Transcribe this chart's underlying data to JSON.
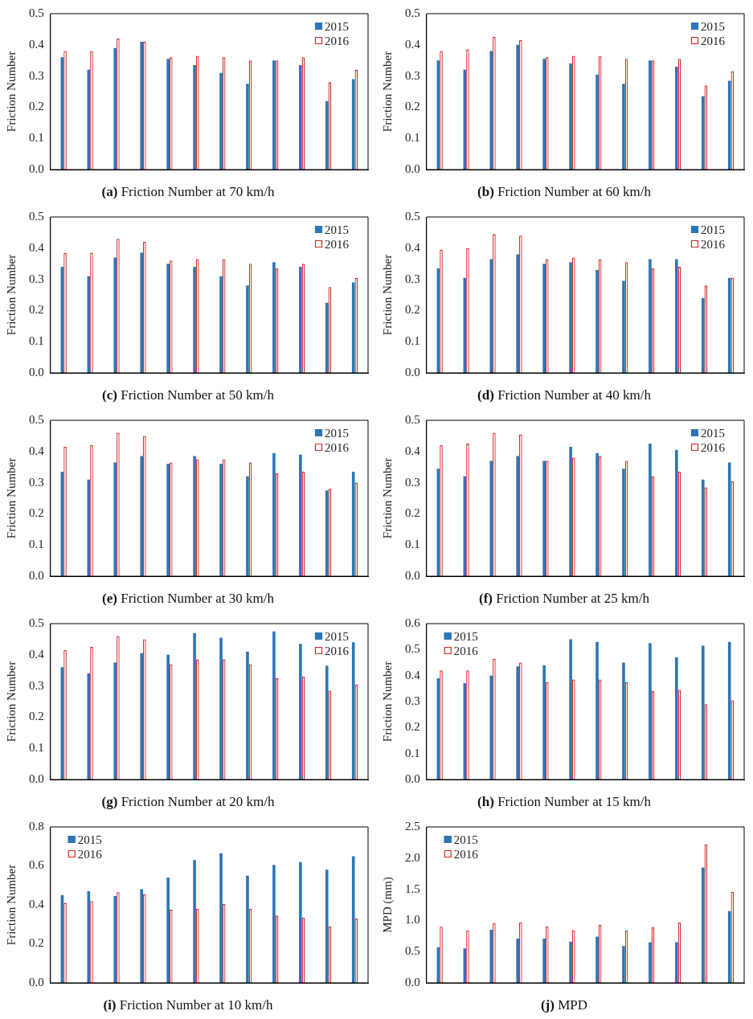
{
  "chart_data": [
    {
      "type": "bar",
      "title": "(a) Friction Number at 70 km/h",
      "ylabel": "Friction Number",
      "categories": [
        null,
        null,
        null,
        null,
        null,
        null,
        null,
        null,
        null,
        null,
        null,
        null
      ],
      "ylim": [
        0,
        0.5
      ],
      "yticks": [
        {
          "value": 0,
          "label": "0.0"
        },
        0.1,
        0.2,
        0.3,
        0.4,
        0.5
      ],
      "tick_labels": "y",
      "grid": false,
      "legend": "top right",
      "series": [
        {
          "name": "2015",
          "color": "#2e75b6",
          "values": [
            0.36,
            0.32,
            0.39,
            0.41,
            0.355,
            0.335,
            0.31,
            0.275,
            0.35,
            0.335,
            0.22,
            0.29
          ]
        },
        {
          "name": "2016",
          "color": "#d62828",
          "values": [
            0.38,
            0.38,
            0.42,
            0.41,
            0.36,
            0.365,
            0.36,
            0.35,
            0.35,
            0.36,
            0.28,
            0.32
          ]
        }
      ]
    },
    {
      "type": "bar",
      "title": "(b) Friction Number at 60 km/h",
      "ylabel": "Friction Number",
      "categories": [
        null,
        null,
        null,
        null,
        null,
        null,
        null,
        null,
        null,
        null,
        null,
        null
      ],
      "ylim": [
        0,
        0.5
      ],
      "yticks": [
        {
          "value": 0,
          "label": "0.0"
        },
        0.1,
        0.2,
        0.3,
        0.4,
        0.5
      ],
      "tick_labels": "y",
      "grid": false,
      "legend": "top right",
      "series": [
        {
          "name": "2015",
          "color": "#2e75b6",
          "values": [
            0.35,
            0.32,
            0.38,
            0.4,
            0.355,
            0.34,
            0.305,
            0.275,
            0.35,
            0.33,
            0.235,
            0.285
          ]
        },
        {
          "name": "2016",
          "color": "#d62828",
          "values": [
            0.38,
            0.385,
            0.425,
            0.415,
            0.36,
            0.365,
            0.365,
            0.355,
            0.35,
            0.355,
            0.27,
            0.315
          ]
        }
      ]
    },
    {
      "type": "bar",
      "title": "(c) Friction Number at 50 km/h",
      "ylabel": "Friction Number",
      "categories": [
        null,
        null,
        null,
        null,
        null,
        null,
        null,
        null,
        null,
        null,
        null,
        null
      ],
      "ylim": [
        0,
        0.5
      ],
      "yticks": [
        {
          "value": 0,
          "label": "0.0"
        },
        0.1,
        0.2,
        0.3,
        0.4,
        0.5
      ],
      "tick_labels": "y",
      "grid": false,
      "legend": "top right",
      "series": [
        {
          "name": "2015",
          "color": "#2e75b6",
          "values": [
            0.34,
            0.31,
            0.37,
            0.385,
            0.35,
            0.34,
            0.31,
            0.28,
            0.355,
            0.34,
            0.225,
            0.29
          ]
        },
        {
          "name": "2016",
          "color": "#d62828",
          "values": [
            0.385,
            0.385,
            0.43,
            0.42,
            0.36,
            0.365,
            0.365,
            0.35,
            0.335,
            0.35,
            0.275,
            0.305
          ]
        }
      ]
    },
    {
      "type": "bar",
      "title": "(d) Friction Number at 40 km/h",
      "ylabel": "Friction Number",
      "categories": [
        null,
        null,
        null,
        null,
        null,
        null,
        null,
        null,
        null,
        null,
        null,
        null
      ],
      "ylim": [
        0,
        0.5
      ],
      "yticks": [
        {
          "value": 0,
          "label": "0.0"
        },
        0.1,
        0.2,
        0.3,
        0.4,
        0.5
      ],
      "tick_labels": "y",
      "grid": false,
      "legend": "top right",
      "series": [
        {
          "name": "2015",
          "color": "#2e75b6",
          "values": [
            0.335,
            0.305,
            0.365,
            0.38,
            0.35,
            0.355,
            0.33,
            0.295,
            0.365,
            0.365,
            0.24,
            0.305
          ]
        },
        {
          "name": "2016",
          "color": "#d62828",
          "values": [
            0.395,
            0.4,
            0.445,
            0.44,
            0.365,
            0.37,
            0.365,
            0.355,
            0.335,
            0.34,
            0.28,
            0.305
          ]
        }
      ]
    },
    {
      "type": "bar",
      "title": "(e) Friction Number at 30 km/h",
      "ylabel": "Friction Number",
      "categories": [
        null,
        null,
        null,
        null,
        null,
        null,
        null,
        null,
        null,
        null,
        null,
        null
      ],
      "ylim": [
        0,
        0.5
      ],
      "yticks": [
        {
          "value": 0,
          "label": "0.0"
        },
        0.1,
        0.2,
        0.3,
        0.4,
        0.5
      ],
      "tick_labels": "y",
      "grid": false,
      "legend": "top right",
      "series": [
        {
          "name": "2015",
          "color": "#2e75b6",
          "values": [
            0.335,
            0.31,
            0.365,
            0.385,
            0.36,
            0.385,
            0.36,
            0.32,
            0.395,
            0.39,
            0.275,
            0.335
          ]
        },
        {
          "name": "2016",
          "color": "#d62828",
          "values": [
            0.415,
            0.42,
            0.46,
            0.45,
            0.365,
            0.375,
            0.375,
            0.365,
            0.33,
            0.335,
            0.28,
            0.3
          ]
        }
      ]
    },
    {
      "type": "bar",
      "title": "(f) Friction Number at 25 km/h",
      "ylabel": "Friction Number",
      "categories": [
        null,
        null,
        null,
        null,
        null,
        null,
        null,
        null,
        null,
        null,
        null,
        null
      ],
      "ylim": [
        0,
        0.5
      ],
      "yticks": [
        {
          "value": 0,
          "label": "0.0"
        },
        0.1,
        0.2,
        0.3,
        0.4,
        0.5
      ],
      "tick_labels": "y",
      "grid": false,
      "legend": "top right",
      "series": [
        {
          "name": "2015",
          "color": "#2e75b6",
          "values": [
            0.345,
            0.32,
            0.37,
            0.385,
            0.37,
            0.415,
            0.395,
            0.345,
            0.425,
            0.405,
            0.31,
            0.365
          ]
        },
        {
          "name": "2016",
          "color": "#d62828",
          "values": [
            0.42,
            0.425,
            0.46,
            0.455,
            0.37,
            0.38,
            0.385,
            0.37,
            0.32,
            0.335,
            0.285,
            0.305
          ]
        }
      ]
    },
    {
      "type": "bar",
      "title": "(g) Friction Number at 20 km/h",
      "ylabel": "Friction Number",
      "categories": [
        null,
        null,
        null,
        null,
        null,
        null,
        null,
        null,
        null,
        null,
        null,
        null
      ],
      "ylim": [
        0,
        0.5
      ],
      "yticks": [
        {
          "value": 0,
          "label": "0.0"
        },
        0.1,
        0.2,
        0.3,
        0.4,
        0.5
      ],
      "tick_labels": "y",
      "grid": false,
      "legend": "top right",
      "series": [
        {
          "name": "2015",
          "color": "#2e75b6",
          "values": [
            0.36,
            0.34,
            0.375,
            0.405,
            0.4,
            0.47,
            0.455,
            0.41,
            0.475,
            0.435,
            0.365,
            0.44
          ]
        },
        {
          "name": "2016",
          "color": "#d62828",
          "values": [
            0.415,
            0.425,
            0.46,
            0.45,
            0.37,
            0.385,
            0.385,
            0.37,
            0.325,
            0.33,
            0.285,
            0.305
          ]
        }
      ]
    },
    {
      "type": "bar",
      "title": "(h) Friction Number at 15 km/h",
      "ylabel": "Friction Number",
      "categories": [
        null,
        null,
        null,
        null,
        null,
        null,
        null,
        null,
        null,
        null,
        null,
        null
      ],
      "ylim": [
        0,
        0.6
      ],
      "yticks": [
        {
          "value": 0,
          "label": "0.0"
        },
        0.1,
        0.2,
        0.3,
        0.4,
        0.5,
        0.6
      ],
      "tick_labels": "y",
      "grid": false,
      "legend": "top left",
      "series": [
        {
          "name": "2015",
          "color": "#2e75b6",
          "values": [
            0.39,
            0.37,
            0.4,
            0.435,
            0.44,
            0.54,
            0.53,
            0.45,
            0.525,
            0.47,
            0.515,
            0.53
          ]
        },
        {
          "name": "2016",
          "color": "#d62828",
          "values": [
            0.42,
            0.42,
            0.465,
            0.45,
            0.375,
            0.385,
            0.385,
            0.375,
            0.34,
            0.345,
            0.29,
            0.305
          ]
        }
      ]
    },
    {
      "type": "bar",
      "title": "(i) Friction Number at 10 km/h",
      "ylabel": "Friction Number",
      "categories": [
        null,
        null,
        null,
        null,
        null,
        null,
        null,
        null,
        null,
        null,
        null,
        null
      ],
      "ylim": [
        0,
        0.8
      ],
      "yticks": [
        {
          "value": 0,
          "label": "0.0"
        },
        0.2,
        0.4,
        0.6,
        0.8
      ],
      "tick_labels": "y",
      "grid": false,
      "legend": "top left",
      "series": [
        {
          "name": "2015",
          "color": "#2e75b6",
          "values": [
            0.45,
            0.47,
            0.445,
            0.48,
            0.54,
            0.63,
            0.665,
            0.55,
            0.605,
            0.62,
            0.58,
            0.65
          ]
        },
        {
          "name": "2016",
          "color": "#d62828",
          "values": [
            0.41,
            0.42,
            0.465,
            0.455,
            0.375,
            0.38,
            0.405,
            0.38,
            0.345,
            0.335,
            0.29,
            0.33
          ]
        }
      ]
    },
    {
      "type": "bar",
      "title": "(j) MPD",
      "ylabel": "MPD (mm)",
      "categories": [
        null,
        null,
        null,
        null,
        null,
        null,
        null,
        null,
        null,
        null,
        null,
        null
      ],
      "ylim": [
        0,
        2.5
      ],
      "yticks": [
        {
          "value": 0,
          "label": "0.0"
        },
        0.5,
        {
          "value": 1,
          "label": "1.0"
        },
        1.5,
        {
          "value": 2,
          "label": "2.0"
        },
        2.5
      ],
      "tick_labels": "y",
      "grid": false,
      "legend": "top left",
      "series": [
        {
          "name": "2015",
          "color": "#2e75b6",
          "values": [
            0.57,
            0.55,
            0.85,
            0.71,
            0.71,
            0.66,
            0.74,
            0.59,
            0.65,
            0.65,
            1.85,
            1.15
          ]
        },
        {
          "name": "2016",
          "color": "#d62828",
          "values": [
            0.9,
            0.84,
            0.96,
            0.97,
            0.91,
            0.84,
            0.93,
            0.84,
            0.89,
            0.97,
            2.22,
            1.46
          ]
        }
      ]
    }
  ]
}
